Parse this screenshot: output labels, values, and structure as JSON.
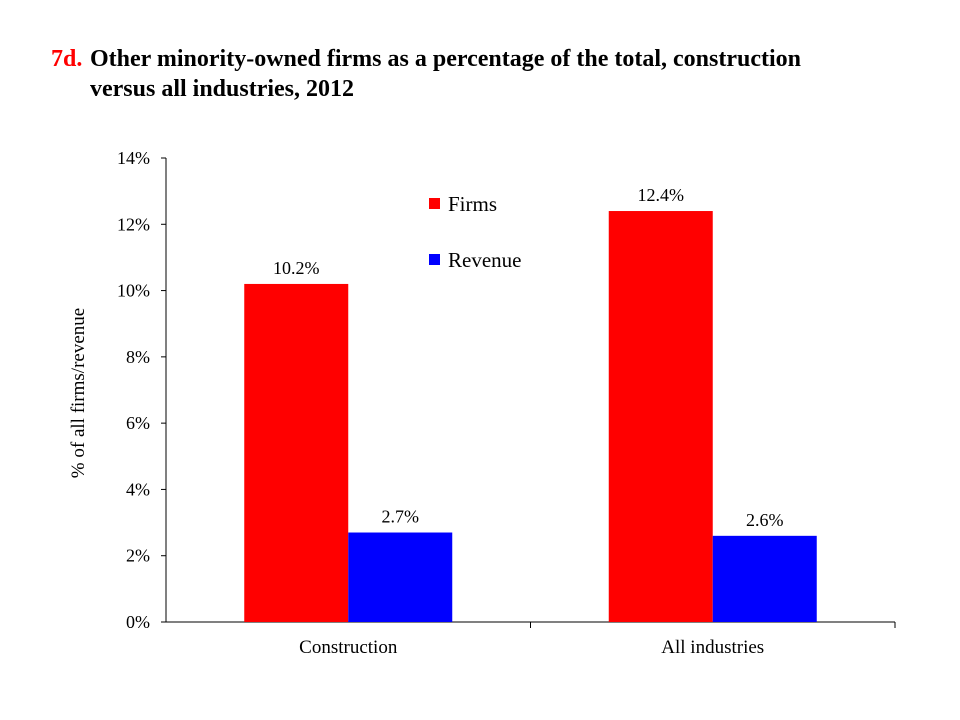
{
  "title": {
    "number": "7d.",
    "line1": "Other minority-owned firms as a percentage of the total, construction",
    "line2": "versus all industries, 2012"
  },
  "chart_data": {
    "type": "bar",
    "categories": [
      "Construction",
      "All industries"
    ],
    "series": [
      {
        "name": "Firms",
        "values": [
          10.2,
          12.4
        ],
        "color": "#ff0000",
        "labels": [
          "10.2%",
          "12.4%"
        ]
      },
      {
        "name": "Revenue",
        "values": [
          2.7,
          2.6
        ],
        "color": "#0000ff",
        "labels": [
          "2.7%",
          "2.6%"
        ]
      }
    ],
    "ylabel": "% of all firms/revenue",
    "ylim": [
      0,
      14
    ],
    "yticks": [
      "0%",
      "2%",
      "4%",
      "6%",
      "8%",
      "10%",
      "12%",
      "14%"
    ],
    "grid": false,
    "legend_position": "top-center"
  }
}
